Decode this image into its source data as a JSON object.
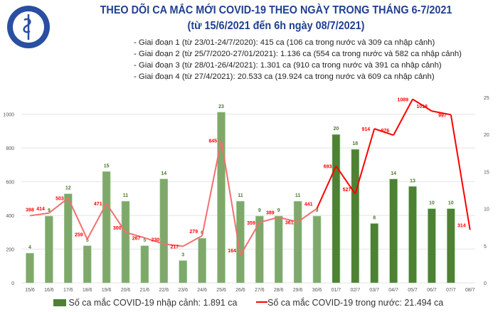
{
  "logo": {
    "text": "BỘ Y TẾ",
    "subtext": "MINISTRY OF HEALTH"
  },
  "title": [
    "THEO DÕI CA MẮC MỚI COVID-19 THEO NGÀY TRONG THÁNG 6-7/2021",
    "(từ 15/6/2021 đến 6h ngày 08/7/2021)"
  ],
  "notes": [
    "- Giai đoạn 1 (từ 23/01-24/7/2020): 415 ca (106 ca trong nước và 309 ca nhập cảnh)",
    "- Giai đoạn 2 (từ 25/7/2020-27/01/2021): 1.136 ca (554 ca trong nước và 582 ca nhập cảnh)",
    "- Giai đoạn 3 (từ 28/01-26/4/2021): 1.301 ca (910 ca trong nước và 391 ca nhập cảnh)",
    "- Giai đoạn 4 (từ 27/4/2021): 20.533 ca (19.924 ca trong nước và 609 ca nhập cảnh)"
  ],
  "chart_data": {
    "type": "bar+line",
    "categories": [
      "15/6",
      "16/6",
      "17/6",
      "18/6",
      "19/6",
      "20/6",
      "21/6",
      "22/6",
      "23/6",
      "24/6",
      "25/6",
      "26/6",
      "27/6",
      "28/6",
      "29/6",
      "30/6",
      "01/7",
      "02/7",
      "03/7",
      "04/7",
      "05/7",
      "06/7",
      "07/7",
      "08/7"
    ],
    "series": [
      {
        "name": "Số ca mắc COVID-19 nhập cảnh: 1.891 ca",
        "type": "bar",
        "axis": "right",
        "color": "#4e8133",
        "color_faded": "#7fa86a",
        "values": [
          4,
          9,
          12,
          5,
          15,
          11,
          5,
          14,
          3,
          6,
          23,
          11,
          9,
          9,
          11,
          9,
          20,
          18,
          8,
          14,
          13,
          10,
          10,
          null
        ]
      },
      {
        "name": "Số ca mắc COVID-19 trong nước: 21.494 ca",
        "type": "line",
        "axis": "left",
        "color": "#ff0000",
        "color_faded": "#f07070",
        "values": [
          398,
          414,
          503,
          259,
          471,
          300,
          267,
          230,
          217,
          279,
          845,
          164,
          359,
          389,
          361,
          441,
          693,
          527,
          914,
          876,
          1089,
          1019,
          997,
          314
        ]
      }
    ],
    "y_left": {
      "ticks": [
        0,
        200,
        400,
        600,
        800,
        1000
      ],
      "range": [
        0,
        1100
      ]
    },
    "y_right": {
      "ticks": [
        0,
        5,
        10,
        15,
        20,
        25
      ],
      "range": [
        0,
        25
      ]
    },
    "grid": true,
    "legend": "bottom"
  }
}
